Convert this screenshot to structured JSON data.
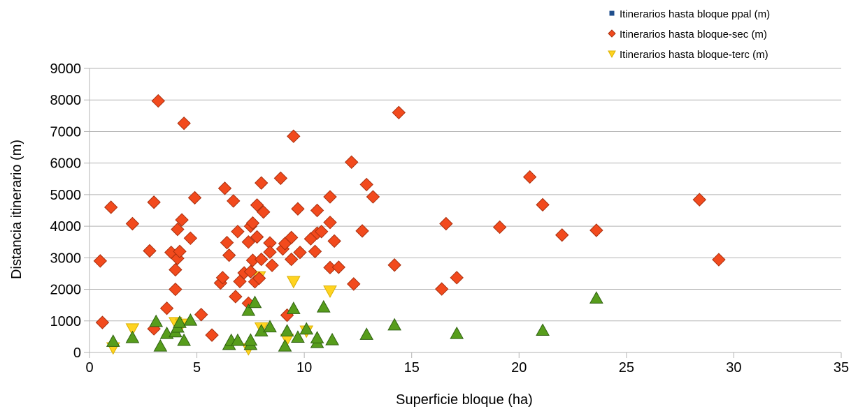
{
  "chart_data": {
    "type": "scatter",
    "xlabel": "Superficie bloque (ha)",
    "ylabel": "Distancia itinerario (m)",
    "xlim": [
      0,
      35
    ],
    "ylim": [
      0,
      9000
    ],
    "x_ticks": [
      "0",
      "5",
      "10",
      "15",
      "20",
      "25",
      "30",
      "35"
    ],
    "y_ticks": [
      "0",
      "1000",
      "2000",
      "3000",
      "4000",
      "5000",
      "6000",
      "7000",
      "8000",
      "9000"
    ],
    "grid": "horizontal",
    "legend_position": "top-right",
    "series": [
      {
        "name": "Itinerarios hasta bloque ppal (m)",
        "marker": "square",
        "color": "#1f4e8c",
        "points": []
      },
      {
        "name": "Itinerarios hasta bloque-sec (m)",
        "marker": "diamond",
        "color": "#f24a1d",
        "points": [
          [
            0.5,
            2900
          ],
          [
            0.6,
            950
          ],
          [
            1.0,
            4600
          ],
          [
            2.0,
            4080
          ],
          [
            2.8,
            3220
          ],
          [
            3.0,
            4760
          ],
          [
            3.0,
            750
          ],
          [
            3.2,
            7970
          ],
          [
            3.6,
            1400
          ],
          [
            3.8,
            3170
          ],
          [
            4.0,
            2620
          ],
          [
            4.0,
            2000
          ],
          [
            4.1,
            2980
          ],
          [
            4.1,
            3900
          ],
          [
            4.2,
            3200
          ],
          [
            4.3,
            4200
          ],
          [
            4.4,
            7260
          ],
          [
            4.7,
            3620
          ],
          [
            4.9,
            4900
          ],
          [
            5.2,
            1200
          ],
          [
            5.7,
            550
          ],
          [
            6.1,
            2200
          ],
          [
            6.2,
            2370
          ],
          [
            6.3,
            5200
          ],
          [
            6.4,
            3480
          ],
          [
            6.5,
            3080
          ],
          [
            6.7,
            4800
          ],
          [
            6.8,
            1770
          ],
          [
            6.9,
            3830
          ],
          [
            7.0,
            2250
          ],
          [
            7.2,
            2520
          ],
          [
            7.4,
            1560
          ],
          [
            7.4,
            3500
          ],
          [
            7.5,
            2560
          ],
          [
            7.5,
            4000
          ],
          [
            7.6,
            2920
          ],
          [
            7.6,
            4100
          ],
          [
            7.7,
            2240
          ],
          [
            7.8,
            3660
          ],
          [
            7.8,
            4670
          ],
          [
            7.9,
            2350
          ],
          [
            8.0,
            2950
          ],
          [
            8.0,
            5370
          ],
          [
            8.1,
            4450
          ],
          [
            8.4,
            3470
          ],
          [
            8.4,
            3180
          ],
          [
            8.5,
            2760
          ],
          [
            8.9,
            5520
          ],
          [
            9.0,
            3280
          ],
          [
            9.1,
            3450
          ],
          [
            9.2,
            1180
          ],
          [
            9.4,
            2950
          ],
          [
            9.4,
            3640
          ],
          [
            9.5,
            6850
          ],
          [
            9.7,
            4550
          ],
          [
            9.8,
            3170
          ],
          [
            10.3,
            3600
          ],
          [
            10.5,
            3200
          ],
          [
            10.6,
            4500
          ],
          [
            10.6,
            3780
          ],
          [
            10.8,
            3830
          ],
          [
            11.2,
            4930
          ],
          [
            11.2,
            4120
          ],
          [
            11.2,
            2690
          ],
          [
            11.4,
            3530
          ],
          [
            11.6,
            2700
          ],
          [
            12.2,
            6030
          ],
          [
            12.3,
            2170
          ],
          [
            12.7,
            3850
          ],
          [
            12.9,
            5320
          ],
          [
            13.2,
            4930
          ],
          [
            14.2,
            2770
          ],
          [
            14.4,
            7600
          ],
          [
            16.4,
            2010
          ],
          [
            16.6,
            4080
          ],
          [
            17.1,
            2370
          ],
          [
            19.1,
            3970
          ],
          [
            20.5,
            5560
          ],
          [
            21.1,
            4680
          ],
          [
            22.0,
            3720
          ],
          [
            23.6,
            3870
          ],
          [
            28.4,
            4840
          ],
          [
            29.3,
            2940
          ]
        ]
      },
      {
        "name": "Itinerarios hasta bloque-terc (m)",
        "marker": "triangle-down",
        "color": "#ffd320",
        "points": [
          [
            1.1,
            150
          ],
          [
            2.0,
            750
          ],
          [
            4.0,
            950
          ],
          [
            4.3,
            900
          ],
          [
            7.4,
            120
          ],
          [
            7.9,
            2400
          ],
          [
            8.0,
            780
          ],
          [
            9.2,
            420
          ],
          [
            9.5,
            2250
          ],
          [
            10.1,
            680
          ],
          [
            11.2,
            1950
          ]
        ]
      },
      {
        "name": "",
        "marker": "triangle-up",
        "color": "#579d1c",
        "points": [
          [
            1.1,
            350
          ],
          [
            2.0,
            470
          ],
          [
            3.1,
            980
          ],
          [
            3.3,
            200
          ],
          [
            3.6,
            600
          ],
          [
            4.0,
            650
          ],
          [
            4.1,
            800
          ],
          [
            4.2,
            950
          ],
          [
            4.4,
            380
          ],
          [
            4.7,
            1020
          ],
          [
            6.5,
            250
          ],
          [
            6.6,
            380
          ],
          [
            6.9,
            380
          ],
          [
            7.4,
            1330
          ],
          [
            7.5,
            250
          ],
          [
            7.5,
            390
          ],
          [
            7.7,
            1580
          ],
          [
            8.0,
            680
          ],
          [
            8.4,
            810
          ],
          [
            9.1,
            200
          ],
          [
            9.2,
            680
          ],
          [
            9.5,
            1390
          ],
          [
            9.7,
            480
          ],
          [
            10.1,
            740
          ],
          [
            10.6,
            310
          ],
          [
            10.6,
            460
          ],
          [
            10.9,
            1440
          ],
          [
            11.3,
            400
          ],
          [
            12.9,
            570
          ],
          [
            14.2,
            870
          ],
          [
            17.1,
            600
          ],
          [
            21.1,
            700
          ],
          [
            23.6,
            1720
          ]
        ]
      }
    ]
  }
}
